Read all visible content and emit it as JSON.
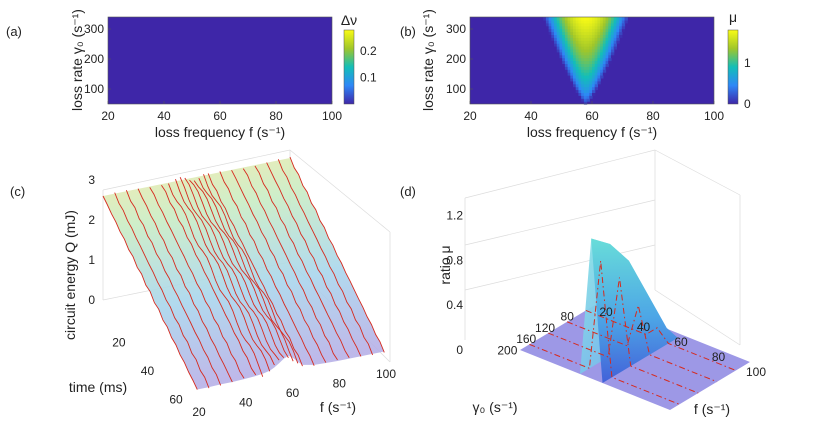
{
  "panels": {
    "a": {
      "label": "(a)"
    },
    "b": {
      "label": "(b)"
    },
    "c": {
      "label": "(c)"
    },
    "d": {
      "label": "(d)"
    }
  },
  "chart_data": [
    {
      "panel": "(a)",
      "type": "heatmap",
      "xlabel": "loss frequency f (s⁻¹)",
      "ylabel": "loss rate γ₀ (s⁻¹)",
      "colorbar_label": "Δν",
      "x_ticks": [
        20,
        40,
        60,
        80,
        100
      ],
      "y_ticks": [
        100,
        200,
        300
      ],
      "colorbar_ticks": [
        "0.1",
        "0.2"
      ],
      "xlim": [
        20,
        100
      ],
      "ylim": [
        50,
        340
      ],
      "colorbar_range": [
        0,
        0.28
      ],
      "surface": {
        "peak_f": 59,
        "max_value": 0.28,
        "wedge_halfwidth_at_top": 4,
        "apex_gamma": 50
      },
      "colormap": [
        "#3e26a8",
        "#2e87f7",
        "#13beb8",
        "#a0c62a",
        "#f9fb15"
      ]
    },
    {
      "panel": "(b)",
      "type": "heatmap",
      "xlabel": "loss frequency f (s⁻¹)",
      "ylabel": "loss rate γ₀ (s⁻¹)",
      "colorbar_label": "μ",
      "x_ticks": [
        20,
        40,
        60,
        80,
        100
      ],
      "y_ticks": [
        100,
        200,
        300
      ],
      "colorbar_ticks": [
        "0",
        "1"
      ],
      "xlim": [
        20,
        100
      ],
      "ylim": [
        50,
        340
      ],
      "colorbar_range": [
        0,
        1.8
      ],
      "surface": {
        "peak_f": 58,
        "max_value": 1.8,
        "wedge_halfwidth_at_top": 14,
        "apex_gamma": 50
      },
      "colormap": [
        "#3e26a8",
        "#2e87f7",
        "#13beb8",
        "#a0c62a",
        "#f9fb15"
      ]
    },
    {
      "panel": "(c)",
      "type": "area",
      "view": "3d",
      "xlabel": "f (s⁻¹)",
      "ylabel": "time (ms)",
      "zlabel": "circuit energy Q (mJ)",
      "x_ticks": [
        20,
        40,
        60,
        80,
        100
      ],
      "y_ticks": [
        20,
        40,
        60
      ],
      "z_ticks": [
        0,
        1,
        2,
        3
      ],
      "xlim": [
        20,
        100
      ],
      "ylim": [
        0,
        70
      ],
      "zlim": [
        0,
        3
      ],
      "series": [
        {
          "x": 20,
          "start": 2.6,
          "end": 0.12
        },
        {
          "x": 25,
          "start": 2.6,
          "end": 0.12
        },
        {
          "x": 30,
          "start": 2.6,
          "end": 0.13
        },
        {
          "x": 35,
          "start": 2.6,
          "end": 0.13
        },
        {
          "x": 40,
          "start": 2.6,
          "end": 0.14
        },
        {
          "x": 45,
          "start": 2.6,
          "end": 0.16
        },
        {
          "x": 48,
          "start": 2.6,
          "end": 0.18
        },
        {
          "x": 51,
          "start": 2.6,
          "end": 0.22
        },
        {
          "x": 53,
          "start": 2.6,
          "end": 0.28
        },
        {
          "x": 55,
          "start": 2.6,
          "end": 0.36
        },
        {
          "x": 57,
          "start": 2.6,
          "end": 0.45
        },
        {
          "x": 59,
          "start": 2.6,
          "end": 0.5
        },
        {
          "x": 61,
          "start": 2.6,
          "end": 0.42
        },
        {
          "x": 63,
          "start": 2.6,
          "end": 0.3
        },
        {
          "x": 65,
          "start": 2.6,
          "end": 0.2
        },
        {
          "x": 70,
          "start": 2.6,
          "end": 0.14
        },
        {
          "x": 75,
          "start": 2.6,
          "end": 0.13
        },
        {
          "x": 80,
          "start": 2.6,
          "end": 0.12
        },
        {
          "x": 85,
          "start": 2.6,
          "end": 0.12
        },
        {
          "x": 90,
          "start": 2.6,
          "end": 0.12
        },
        {
          "x": 95,
          "start": 2.6,
          "end": 0.12
        },
        {
          "x": 100,
          "start": 2.6,
          "end": 0.12
        }
      ]
    },
    {
      "panel": "(d)",
      "type": "area",
      "view": "3d",
      "xlabel": "f (s⁻¹)",
      "ylabel": "γ₀ (s⁻¹)",
      "zlabel": "ratio μ",
      "x_ticks": [
        20,
        40,
        60,
        80,
        100
      ],
      "y_ticks": [
        80,
        120,
        160,
        200
      ],
      "z_ticks": [
        "0",
        "0.4",
        "0.8",
        "1.2"
      ],
      "xlim": [
        20,
        100
      ],
      "ylim": [
        50,
        220
      ],
      "zlim": [
        0,
        1.3
      ],
      "ridge": [
        {
          "gamma": 220,
          "mu": 1.25
        },
        {
          "gamma": 180,
          "mu": 1.1
        },
        {
          "gamma": 140,
          "mu": 0.85
        },
        {
          "gamma": 100,
          "mu": 0.45
        },
        {
          "gamma": 60,
          "mu": 0.05
        }
      ],
      "dashed_slices": [
        {
          "gamma": 200,
          "peak_mu": 1.0
        },
        {
          "gamma": 160,
          "peak_mu": 0.75
        },
        {
          "gamma": 120,
          "peak_mu": 0.4
        },
        {
          "gamma": 80,
          "peak_mu": 0.1
        }
      ],
      "peak_f": 58
    }
  ]
}
